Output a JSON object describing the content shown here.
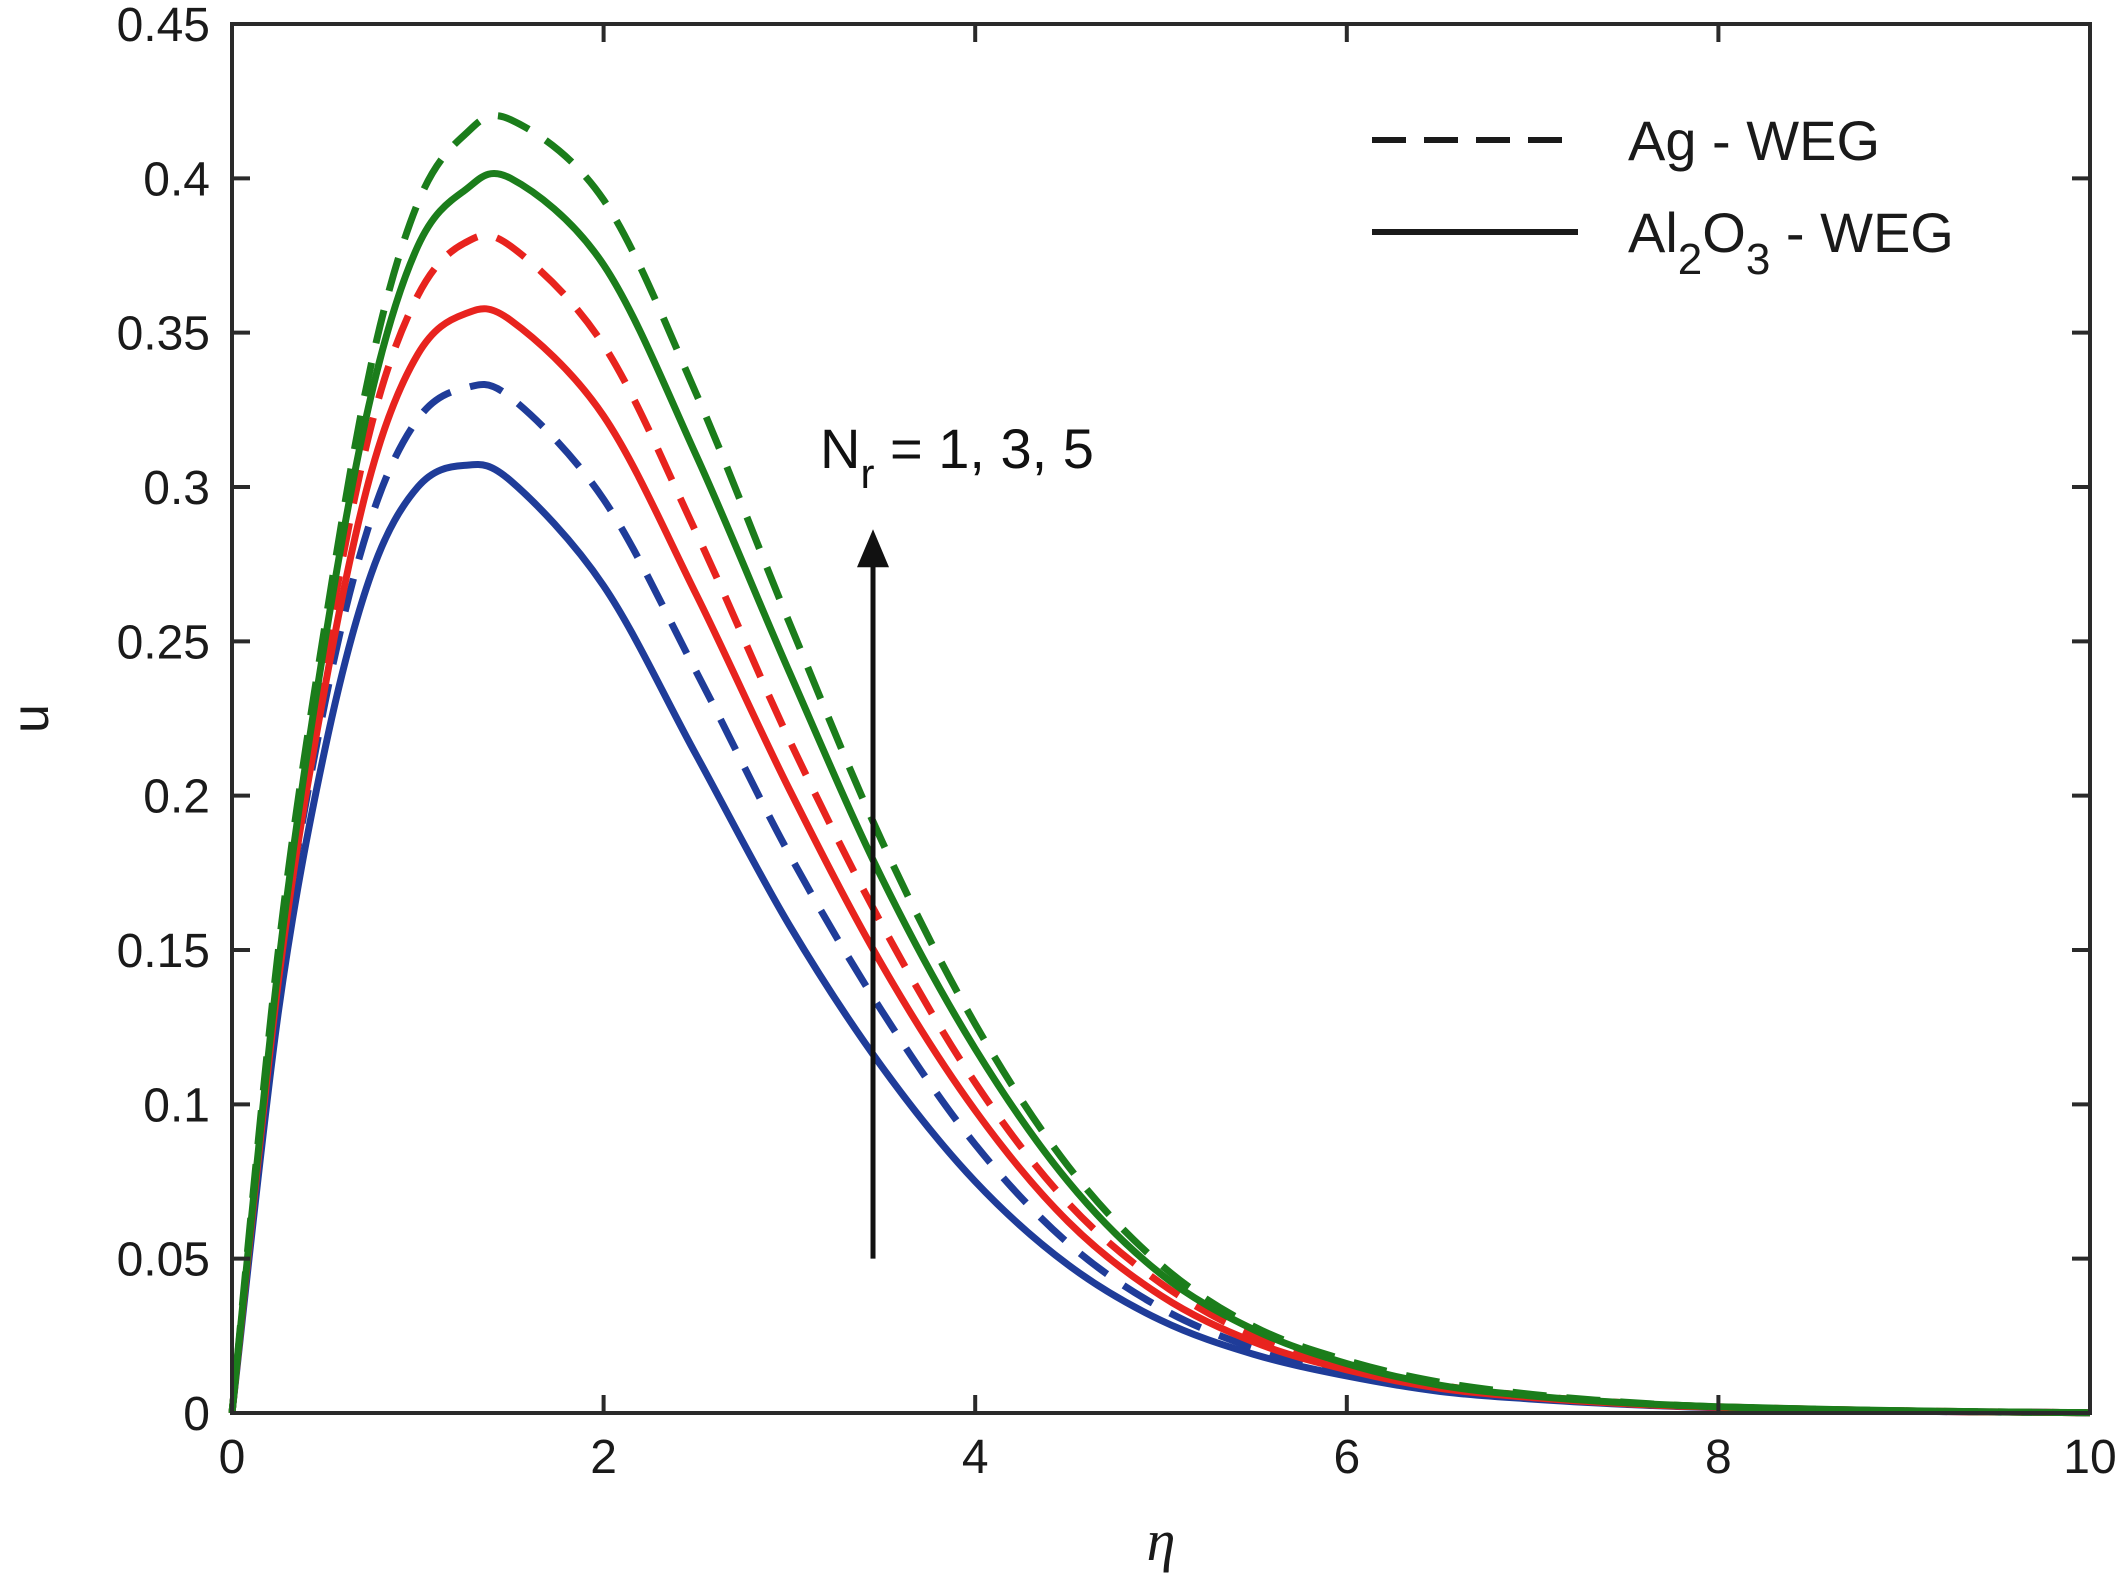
{
  "chart_data": {
    "type": "line",
    "xlabel": "η",
    "ylabel": "u",
    "xlim": [
      0,
      10
    ],
    "ylim": [
      0,
      0.45
    ],
    "x_ticks": [
      "0",
      "2",
      "4",
      "6",
      "8",
      "10"
    ],
    "y_ticks": [
      "0",
      "0.05",
      "0.1",
      "0.15",
      "0.2",
      "0.25",
      "0.3",
      "0.35",
      "0.4",
      "0.45"
    ],
    "grid": false,
    "legend_position": "top-right",
    "legend": [
      {
        "label": "Ag - WEG",
        "style": "dashed"
      },
      {
        "label_parts": [
          "Al",
          "2",
          "O",
          "3",
          " - WEG"
        ],
        "style": "solid"
      }
    ],
    "annotation": {
      "text_parts": [
        "N",
        "r",
        " = 1, 3, 5"
      ],
      "arrow_from": [
        3.45,
        0.05
      ],
      "arrow_to": [
        3.45,
        0.285
      ]
    },
    "series": [
      {
        "nanofluid": "Al2O3 - WEG",
        "Nr": 1,
        "color": "#1f3c99",
        "style": "solid",
        "x": [
          0,
          0.25,
          0.5,
          0.75,
          1.0,
          1.25,
          1.5,
          2.0,
          2.5,
          3.0,
          3.5,
          4.0,
          4.5,
          5.0,
          5.5,
          6.0,
          6.5,
          7.0,
          7.5,
          8.0,
          9.0,
          10.0
        ],
        "y": [
          0,
          0.13,
          0.215,
          0.272,
          0.3,
          0.307,
          0.302,
          0.268,
          0.213,
          0.158,
          0.112,
          0.075,
          0.048,
          0.03,
          0.019,
          0.012,
          0.007,
          0.0045,
          0.0028,
          0.0017,
          0.0006,
          0.0001
        ]
      },
      {
        "nanofluid": "Ag - WEG",
        "Nr": 1,
        "color": "#1f3c99",
        "style": "dashed",
        "x": [
          0,
          0.25,
          0.5,
          0.75,
          1.0,
          1.25,
          1.5,
          2.0,
          2.5,
          3.0,
          3.5,
          4.0,
          4.5,
          5.0,
          5.5,
          6.0,
          6.5,
          7.0,
          7.5,
          8.0,
          9.0,
          10.0
        ],
        "y": [
          0,
          0.14,
          0.23,
          0.29,
          0.322,
          0.332,
          0.329,
          0.296,
          0.24,
          0.181,
          0.13,
          0.087,
          0.055,
          0.034,
          0.021,
          0.013,
          0.008,
          0.005,
          0.003,
          0.0018,
          0.0006,
          0.0001
        ]
      },
      {
        "nanofluid": "Al2O3 - WEG",
        "Nr": 3,
        "color": "#e8231e",
        "style": "solid",
        "x": [
          0,
          0.25,
          0.5,
          0.75,
          1.0,
          1.25,
          1.5,
          2.0,
          2.5,
          3.0,
          3.5,
          4.0,
          4.5,
          5.0,
          5.5,
          6.0,
          6.5,
          7.0,
          7.5,
          8.0,
          9.0,
          10.0
        ],
        "y": [
          0,
          0.14,
          0.235,
          0.305,
          0.343,
          0.356,
          0.354,
          0.323,
          0.265,
          0.202,
          0.145,
          0.098,
          0.062,
          0.038,
          0.023,
          0.014,
          0.008,
          0.005,
          0.003,
          0.0018,
          0.0006,
          0.0001
        ]
      },
      {
        "nanofluid": "Ag - WEG",
        "Nr": 3,
        "color": "#e8231e",
        "style": "dashed",
        "x": [
          0,
          0.25,
          0.5,
          0.75,
          1.0,
          1.25,
          1.5,
          2.0,
          2.5,
          3.0,
          3.5,
          4.0,
          4.5,
          5.0,
          5.5,
          6.0,
          6.5,
          7.0,
          7.5,
          8.0,
          9.0,
          10.0
        ],
        "y": [
          0,
          0.145,
          0.245,
          0.32,
          0.362,
          0.379,
          0.378,
          0.346,
          0.285,
          0.218,
          0.158,
          0.107,
          0.068,
          0.042,
          0.025,
          0.015,
          0.009,
          0.0055,
          0.0033,
          0.002,
          0.0007,
          0.0001
        ]
      },
      {
        "nanofluid": "Al2O3 - WEG",
        "Nr": 5,
        "color": "#1b7d1b",
        "style": "solid",
        "x": [
          0,
          0.25,
          0.5,
          0.75,
          1.0,
          1.25,
          1.5,
          2.0,
          2.5,
          3.0,
          3.5,
          4.0,
          4.5,
          5.0,
          5.5,
          6.0,
          6.5,
          7.0,
          7.5,
          8.0,
          9.0,
          10.0
        ],
        "y": [
          0,
          0.145,
          0.25,
          0.33,
          0.378,
          0.396,
          0.4,
          0.372,
          0.31,
          0.24,
          0.173,
          0.118,
          0.075,
          0.045,
          0.027,
          0.016,
          0.009,
          0.0055,
          0.0033,
          0.002,
          0.0007,
          0.0001
        ]
      },
      {
        "nanofluid": "Ag - WEG",
        "Nr": 5,
        "color": "#1b7d1b",
        "style": "dashed",
        "x": [
          0,
          0.25,
          0.5,
          0.75,
          1.0,
          1.25,
          1.5,
          2.0,
          2.5,
          3.0,
          3.5,
          4.0,
          4.5,
          5.0,
          5.5,
          6.0,
          6.5,
          7.0,
          7.5,
          8.0,
          9.0,
          10.0
        ],
        "y": [
          0,
          0.15,
          0.255,
          0.34,
          0.392,
          0.414,
          0.419,
          0.393,
          0.33,
          0.256,
          0.185,
          0.126,
          0.08,
          0.048,
          0.028,
          0.017,
          0.01,
          0.006,
          0.0035,
          0.002,
          0.0007,
          0.0001
        ]
      }
    ]
  }
}
